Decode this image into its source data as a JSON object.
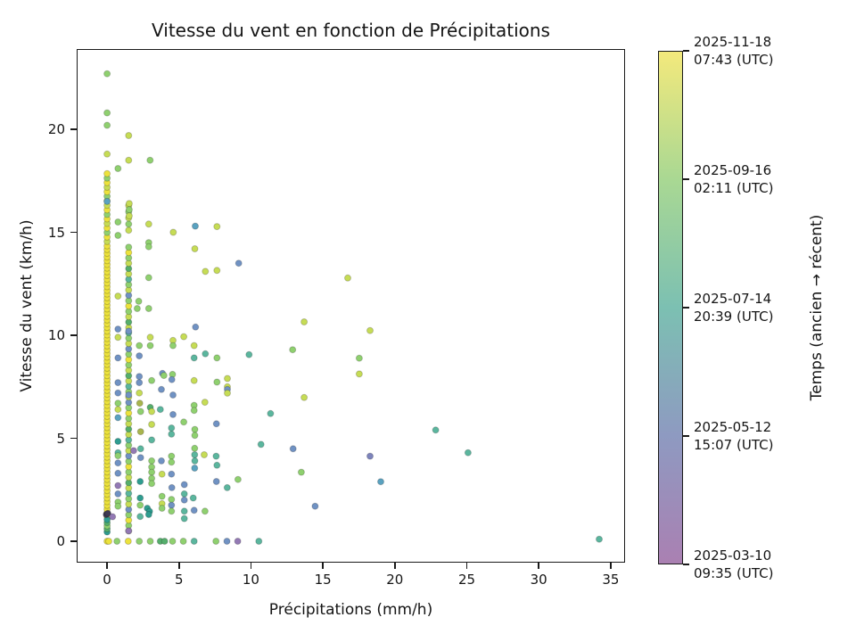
{
  "chart_data": {
    "type": "scatter",
    "title": "Vitesse du vent en fonction de Précipitations",
    "xlabel": "Précipitations (mm/h)",
    "ylabel": "Vitesse du vent (km/h)",
    "xlim": [
      -2.11,
      36.0
    ],
    "ylim": [
      -1.04,
      23.9
    ],
    "xticks": [
      0,
      5,
      10,
      15,
      20,
      25,
      30,
      35
    ],
    "yticks": [
      0,
      5,
      10,
      15,
      20
    ],
    "grid": false,
    "legend": false,
    "marker_diameter_px": 7,
    "palette": {
      "y": "#ece23c",
      "yg": "#c6dc55",
      "g": "#8fd06f",
      "dg": "#55ae6c",
      "t": "#5bb69e",
      "dt": "#2f9d90",
      "tb": "#5aa2c0",
      "b": "#7092c3",
      "bp": "#7d84bc",
      "p": "#9379b4",
      "ol": "#a9b54d",
      "dk": "#3f3a52"
    },
    "columns": [
      {
        "x": 0.0,
        "from": 1.2,
        "to": 14.4,
        "step": 0.18,
        "colors": [
          "y"
        ]
      },
      {
        "x": 0.0,
        "from": 14.55,
        "to": 17.9,
        "step": 0.22,
        "colors": [
          "yg",
          "y",
          "g",
          "y"
        ]
      },
      {
        "x": 0.0,
        "from": 0.45,
        "to": 1.05,
        "step": 0.15,
        "colors": [
          "dt",
          "dg",
          "g",
          "dg"
        ]
      },
      {
        "x": 1.5,
        "from": 0.5,
        "to": 14.3,
        "step": 0.26,
        "colors": [
          "yg",
          "g",
          "y",
          "g",
          "b",
          "yg",
          "g",
          "t",
          "yg",
          "dg"
        ]
      },
      {
        "x": 1.5,
        "from": 15.1,
        "to": 16.4,
        "step": 0.3,
        "colors": [
          "yg",
          "g"
        ]
      }
    ],
    "points": [
      [
        0,
        22.7,
        "g"
      ],
      [
        0,
        20.8,
        "g"
      ],
      [
        0,
        20.2,
        "g"
      ],
      [
        0,
        18.8,
        "yg"
      ],
      [
        0,
        16.5,
        "tb"
      ],
      [
        -0.05,
        1.3,
        "dk"
      ],
      [
        0.05,
        1.35,
        "dk"
      ],
      [
        0,
        0,
        "y"
      ],
      [
        0.12,
        0,
        "y"
      ],
      [
        0.38,
        1.19,
        "p"
      ],
      [
        0.76,
        18.1,
        "g"
      ],
      [
        0.76,
        15.5,
        "g"
      ],
      [
        0.76,
        14.85,
        "g"
      ],
      [
        0.76,
        11.9,
        "yg"
      ],
      [
        0.76,
        10.3,
        "b"
      ],
      [
        0.76,
        9.9,
        "yg"
      ],
      [
        0.76,
        8.9,
        "b"
      ],
      [
        0.76,
        7.7,
        "b"
      ],
      [
        0.76,
        7.2,
        "b"
      ],
      [
        0.76,
        6.7,
        "g"
      ],
      [
        0.76,
        6.4,
        "yg"
      ],
      [
        0.76,
        6.0,
        "tb"
      ],
      [
        0.76,
        4.85,
        "dt"
      ],
      [
        0.76,
        4.3,
        "t"
      ],
      [
        0.76,
        4.15,
        "g"
      ],
      [
        0.76,
        3.8,
        "b"
      ],
      [
        0.76,
        3.3,
        "b"
      ],
      [
        0.76,
        2.7,
        "p"
      ],
      [
        0.76,
        2.3,
        "b"
      ],
      [
        0.76,
        1.9,
        "g"
      ],
      [
        0.76,
        1.7,
        "g"
      ],
      [
        0.69,
        0,
        "g"
      ],
      [
        1.5,
        19.7,
        "yg"
      ],
      [
        1.5,
        18.5,
        "yg"
      ],
      [
        1.54,
        16.4,
        "yg"
      ],
      [
        1.54,
        16.1,
        "g"
      ],
      [
        1.54,
        15.8,
        "yg"
      ],
      [
        1.5,
        10.2,
        "b"
      ],
      [
        1.5,
        7.1,
        "b"
      ],
      [
        1.5,
        0.5,
        "p"
      ],
      [
        1.47,
        0,
        "y"
      ],
      [
        1.85,
        4.4,
        "p"
      ],
      [
        2.2,
        11.65,
        "g"
      ],
      [
        2.1,
        11.3,
        "g"
      ],
      [
        2.24,
        9.5,
        "g"
      ],
      [
        2.24,
        9.0,
        "b"
      ],
      [
        2.24,
        8.0,
        "b"
      ],
      [
        2.24,
        7.7,
        "b"
      ],
      [
        2.24,
        7.2,
        "yg"
      ],
      [
        2.27,
        6.7,
        "ol"
      ],
      [
        2.33,
        6.3,
        "g"
      ],
      [
        2.33,
        5.32,
        "ol"
      ],
      [
        2.33,
        4.49,
        "t"
      ],
      [
        2.33,
        4.06,
        "b"
      ],
      [
        2.3,
        2.9,
        "dt"
      ],
      [
        2.3,
        2.1,
        "dt"
      ],
      [
        2.3,
        1.75,
        "g"
      ],
      [
        2.3,
        1.2,
        "t"
      ],
      [
        2.24,
        0,
        "g"
      ],
      [
        2.99,
        18.5,
        "g"
      ],
      [
        2.9,
        15.4,
        "yg"
      ],
      [
        2.9,
        14.5,
        "g"
      ],
      [
        2.9,
        14.3,
        "g"
      ],
      [
        2.9,
        12.8,
        "g"
      ],
      [
        2.9,
        11.3,
        "g"
      ],
      [
        3.0,
        9.9,
        "yg"
      ],
      [
        3.0,
        9.5,
        "g"
      ],
      [
        3.1,
        7.8,
        "g"
      ],
      [
        3.0,
        6.5,
        "dg"
      ],
      [
        3.1,
        6.3,
        "yg"
      ],
      [
        3.1,
        5.67,
        "yg"
      ],
      [
        3.1,
        4.92,
        "t"
      ],
      [
        3.1,
        3.9,
        "g"
      ],
      [
        3.1,
        3.6,
        "g"
      ],
      [
        3.1,
        3.35,
        "g"
      ],
      [
        3.1,
        3.05,
        "g"
      ],
      [
        3.1,
        2.8,
        "g"
      ],
      [
        2.8,
        1.6,
        "dt"
      ],
      [
        2.95,
        1.45,
        "dt"
      ],
      [
        2.9,
        1.3,
        "dt"
      ],
      [
        3.0,
        0,
        "g"
      ],
      [
        3.85,
        8.15,
        "b"
      ],
      [
        3.95,
        8.05,
        "g"
      ],
      [
        3.78,
        7.37,
        "b"
      ],
      [
        3.7,
        6.4,
        "t"
      ],
      [
        3.78,
        3.9,
        "b"
      ],
      [
        3.82,
        3.26,
        "yg"
      ],
      [
        3.82,
        2.18,
        "g"
      ],
      [
        3.82,
        1.82,
        "yg"
      ],
      [
        3.82,
        1.6,
        "g"
      ],
      [
        3.7,
        0,
        "dg"
      ],
      [
        4.0,
        0,
        "dg"
      ],
      [
        4.6,
        15.0,
        "yg"
      ],
      [
        4.58,
        9.75,
        "yg"
      ],
      [
        4.58,
        9.5,
        "g"
      ],
      [
        4.55,
        8.1,
        "g"
      ],
      [
        4.5,
        7.85,
        "b"
      ],
      [
        4.58,
        7.1,
        "b"
      ],
      [
        4.58,
        6.15,
        "b"
      ],
      [
        4.48,
        5.5,
        "t"
      ],
      [
        4.48,
        5.2,
        "t"
      ],
      [
        4.48,
        4.13,
        "g"
      ],
      [
        4.48,
        3.84,
        "g"
      ],
      [
        4.48,
        3.26,
        "b"
      ],
      [
        4.5,
        2.6,
        "b"
      ],
      [
        4.48,
        2.03,
        "g"
      ],
      [
        4.48,
        1.75,
        "b"
      ],
      [
        4.48,
        1.46,
        "g"
      ],
      [
        4.55,
        0,
        "g"
      ],
      [
        5.33,
        9.93,
        "yg"
      ],
      [
        5.33,
        5.79,
        "g"
      ],
      [
        5.37,
        2.75,
        "b"
      ],
      [
        5.37,
        2.3,
        "t"
      ],
      [
        5.37,
        2.0,
        "b"
      ],
      [
        5.37,
        1.46,
        "t"
      ],
      [
        5.37,
        1.1,
        "t"
      ],
      [
        5.3,
        0,
        "g"
      ],
      [
        6.13,
        15.3,
        "tb"
      ],
      [
        6.1,
        14.2,
        "yg"
      ],
      [
        6.15,
        10.4,
        "b"
      ],
      [
        6.05,
        9.5,
        "yg"
      ],
      [
        6.05,
        8.9,
        "t"
      ],
      [
        6.05,
        7.8,
        "yg"
      ],
      [
        6.05,
        6.6,
        "g"
      ],
      [
        6.05,
        6.35,
        "g"
      ],
      [
        6.1,
        5.43,
        "g"
      ],
      [
        6.1,
        5.14,
        "g"
      ],
      [
        6.09,
        4.51,
        "g"
      ],
      [
        6.09,
        4.2,
        "t"
      ],
      [
        6.1,
        3.9,
        "t"
      ],
      [
        6.09,
        3.55,
        "tb"
      ],
      [
        5.99,
        2.1,
        "t"
      ],
      [
        6.05,
        1.5,
        "b"
      ],
      [
        6.05,
        0,
        "t"
      ],
      [
        6.83,
        13.1,
        "yg"
      ],
      [
        6.83,
        9.1,
        "t"
      ],
      [
        6.8,
        6.75,
        "yg"
      ],
      [
        6.75,
        4.2,
        "yg"
      ],
      [
        6.81,
        1.46,
        "g"
      ],
      [
        7.64,
        15.28,
        "yg"
      ],
      [
        7.64,
        13.15,
        "yg"
      ],
      [
        7.64,
        8.9,
        "g"
      ],
      [
        7.64,
        7.73,
        "g"
      ],
      [
        7.6,
        5.7,
        "b"
      ],
      [
        7.58,
        4.13,
        "t"
      ],
      [
        7.64,
        3.69,
        "t"
      ],
      [
        7.6,
        2.9,
        "b"
      ],
      [
        7.57,
        0,
        "g"
      ],
      [
        8.36,
        7.9,
        "yg"
      ],
      [
        8.36,
        7.5,
        "yg"
      ],
      [
        8.36,
        7.37,
        "b"
      ],
      [
        8.36,
        7.19,
        "yg"
      ],
      [
        8.35,
        2.6,
        "t"
      ],
      [
        8.33,
        0,
        "b"
      ],
      [
        9.15,
        13.5,
        "b"
      ],
      [
        9.1,
        3.0,
        "g"
      ],
      [
        9.08,
        0,
        "p"
      ],
      [
        9.87,
        9.06,
        "t"
      ],
      [
        10.7,
        4.7,
        "t"
      ],
      [
        10.55,
        0,
        "t"
      ],
      [
        11.36,
        6.2,
        "t"
      ],
      [
        12.9,
        9.3,
        "g"
      ],
      [
        12.93,
        4.49,
        "b"
      ],
      [
        13.5,
        3.35,
        "g"
      ],
      [
        13.7,
        10.65,
        "yg"
      ],
      [
        13.7,
        6.98,
        "yg"
      ],
      [
        14.46,
        1.7,
        "b"
      ],
      [
        16.73,
        12.78,
        "yg"
      ],
      [
        17.53,
        8.89,
        "g"
      ],
      [
        17.53,
        8.12,
        "yg"
      ],
      [
        18.28,
        10.23,
        "yg"
      ],
      [
        18.28,
        4.13,
        "bp"
      ],
      [
        19.02,
        2.89,
        "tb"
      ],
      [
        22.84,
        5.4,
        "t"
      ],
      [
        25.09,
        4.3,
        "t"
      ],
      [
        34.2,
        0.1,
        "t"
      ]
    ],
    "colorbar": {
      "label": "Temps (ancien → récent)",
      "gradient_top_to_bottom": [
        "#f3e97c",
        "#a9d893",
        "#7cc0b2",
        "#8e9ac1",
        "#aa80b2"
      ],
      "ticks": [
        {
          "pos": 0.0,
          "line1": "2025-11-18",
          "line2": "07:43 (UTC)"
        },
        {
          "pos": 0.25,
          "line1": "2025-09-16",
          "line2": "02:11 (UTC)"
        },
        {
          "pos": 0.5,
          "line1": "2025-07-14",
          "line2": "20:39 (UTC)"
        },
        {
          "pos": 0.75,
          "line1": "2025-05-12",
          "line2": "15:07 (UTC)"
        },
        {
          "pos": 1.0,
          "line1": "2025-03-10",
          "line2": "09:35 (UTC)"
        }
      ]
    }
  }
}
